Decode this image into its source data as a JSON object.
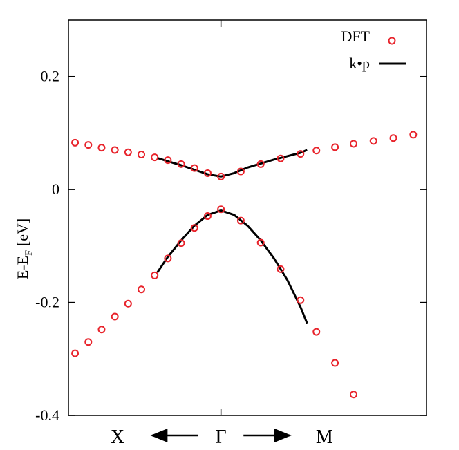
{
  "chart_data": {
    "type": "scatter",
    "title": "",
    "ylabel": {
      "main": "E-E",
      "subscript": "F",
      "unit": " [eV]"
    },
    "ylim": [
      -0.4,
      0.3
    ],
    "xlim": [
      -1.15,
      1.55
    ],
    "yticks": [
      {
        "value": 0.2,
        "label": "0.2"
      },
      {
        "value": 0,
        "label": "0"
      },
      {
        "value": -0.2,
        "label": "-0.2"
      },
      {
        "value": -0.4,
        "label": "-0.4"
      }
    ],
    "xlabels": [
      {
        "value": -0.78,
        "label": "X"
      },
      {
        "value": 0,
        "label": "Γ"
      },
      {
        "value": 0.78,
        "label": "M"
      }
    ],
    "grid": false,
    "legend_position": "top-right",
    "colors": {
      "dft": "#e8232b",
      "kp": "#000000",
      "axis": "#000000"
    },
    "series": [
      {
        "name": "DFT",
        "kind": "markers",
        "x": [
          -1.1,
          -1.0,
          -0.9,
          -0.8,
          -0.7,
          -0.6,
          -0.5,
          -0.4,
          -0.3,
          -0.2,
          -0.1,
          0,
          0.15,
          0.3,
          0.45,
          0.6,
          0.72,
          0.86,
          1.0,
          1.15,
          1.3,
          1.45
        ],
        "y": [
          0.083,
          0.079,
          0.074,
          0.07,
          0.066,
          0.062,
          0.057,
          0.052,
          0.045,
          0.038,
          0.029,
          0.023,
          0.032,
          0.045,
          0.055,
          0.063,
          0.069,
          0.075,
          0.081,
          0.086,
          0.091,
          0.097
        ]
      },
      {
        "name": "DFT",
        "kind": "markers",
        "x": [
          -1.1,
          -1.0,
          -0.9,
          -0.8,
          -0.7,
          -0.6,
          -0.5,
          -0.4,
          -0.3,
          -0.2,
          -0.1,
          0,
          0.15,
          0.3,
          0.45,
          0.6,
          0.72,
          0.86,
          1.0
        ],
        "y": [
          -0.29,
          -0.27,
          -0.248,
          -0.225,
          -0.202,
          -0.177,
          -0.152,
          -0.122,
          -0.095,
          -0.068,
          -0.047,
          -0.035,
          -0.055,
          -0.094,
          -0.141,
          -0.196,
          -0.252,
          -0.307,
          -0.363
        ]
      },
      {
        "name": "k•p",
        "kind": "line",
        "x": [
          -0.48,
          -0.4,
          -0.3,
          -0.2,
          -0.1,
          0,
          0.1,
          0.2,
          0.3,
          0.4,
          0.5,
          0.6,
          0.65
        ],
        "y": [
          0.056,
          0.05,
          0.043,
          0.035,
          0.027,
          0.023,
          0.029,
          0.039,
          0.046,
          0.053,
          0.059,
          0.065,
          0.07
        ]
      },
      {
        "name": "k•p",
        "kind": "line",
        "x": [
          -0.48,
          -0.4,
          -0.3,
          -0.2,
          -0.1,
          0,
          0.1,
          0.2,
          0.3,
          0.4,
          0.5,
          0.6,
          0.65
        ],
        "y": [
          -0.147,
          -0.119,
          -0.09,
          -0.064,
          -0.045,
          -0.037,
          -0.045,
          -0.064,
          -0.09,
          -0.122,
          -0.16,
          -0.208,
          -0.237
        ]
      }
    ],
    "legend": [
      {
        "label": "DFT",
        "kind": "markers"
      },
      {
        "label": "k•p",
        "kind": "line"
      }
    ],
    "arrows": [
      {
        "from": -0.17,
        "to": -0.52,
        "label": "X-arrow"
      },
      {
        "from": 0.17,
        "to": 0.52,
        "label": "M-arrow"
      }
    ]
  }
}
